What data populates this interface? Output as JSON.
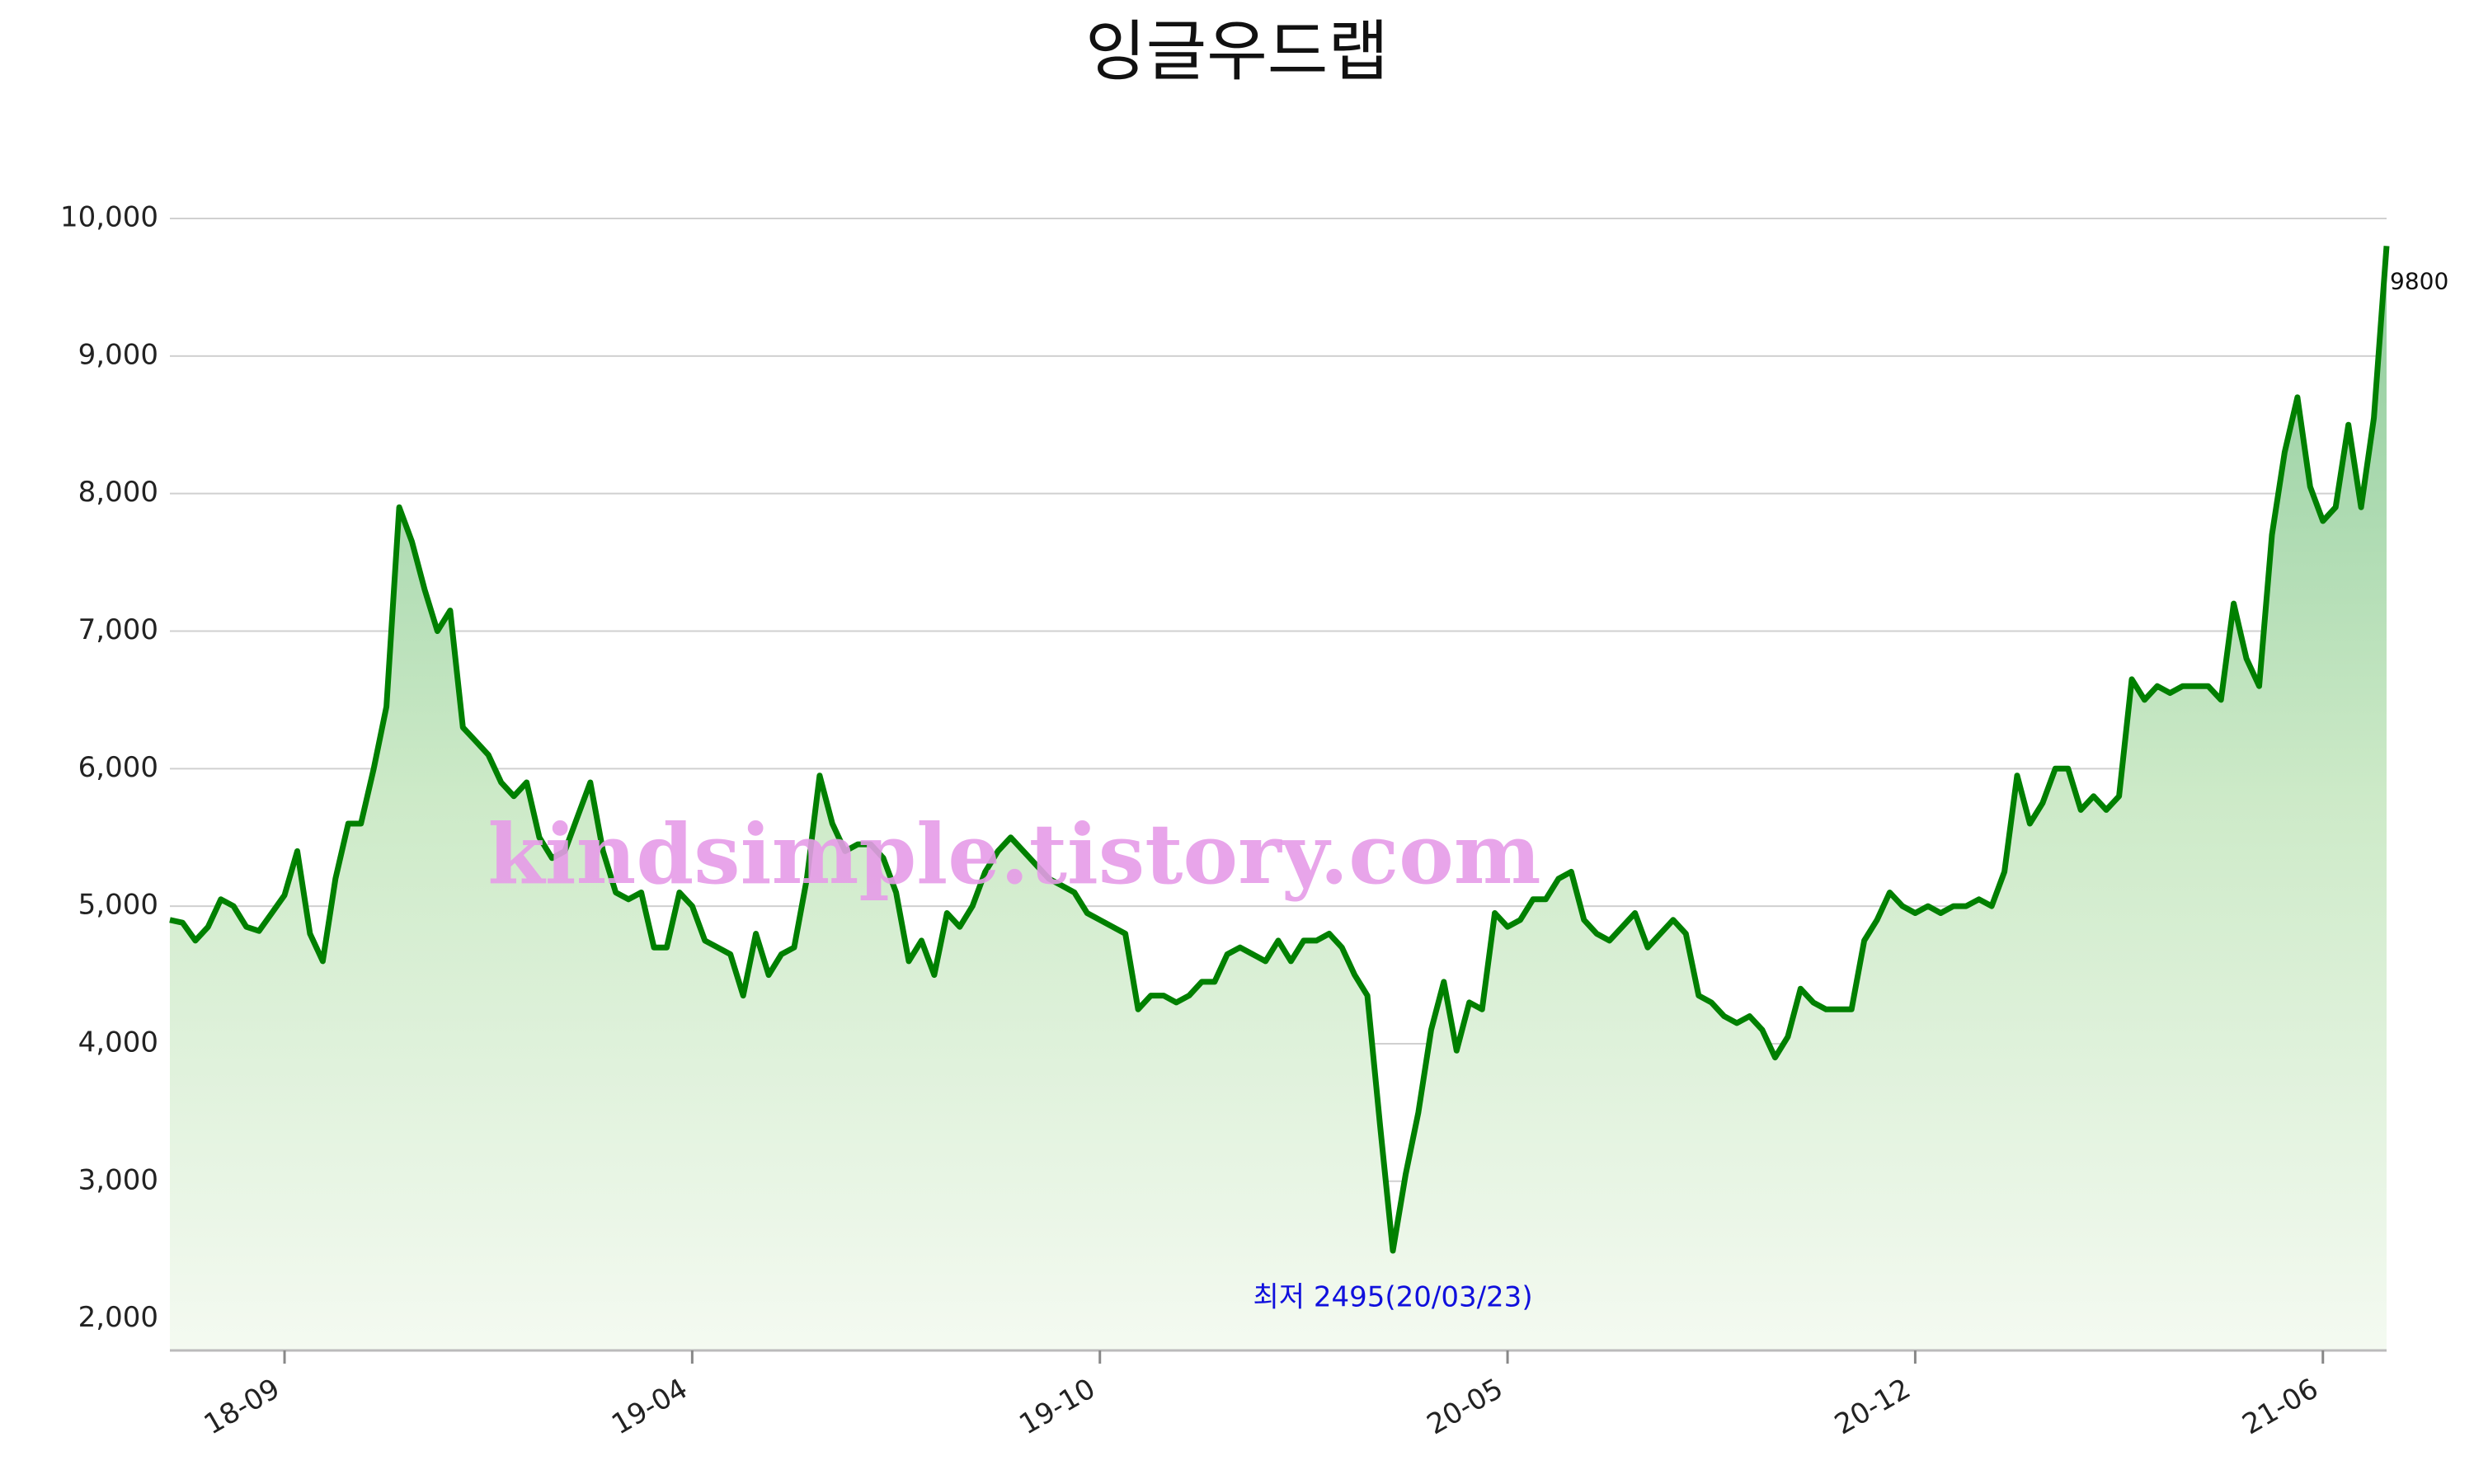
{
  "chart_data": {
    "type": "line",
    "title": "잉글우드랩",
    "watermark": "kindsimple.tistory.com",
    "color": "#008000",
    "grid": true,
    "annotation": "최저 2495(20/03/23)",
    "ylim": [
      1770,
      10000
    ],
    "yticks": [
      {
        "value": 2000,
        "label": "2,000"
      },
      {
        "value": 3000,
        "label": "3,000"
      },
      {
        "value": 4000,
        "label": "4,000"
      },
      {
        "value": 5000,
        "label": "5,000"
      },
      {
        "value": 6000,
        "label": "6,000"
      },
      {
        "value": 7000,
        "label": "7,000"
      },
      {
        "value": 8000,
        "label": "8,000"
      },
      {
        "value": 9000,
        "label": "9,000"
      },
      {
        "value": 10000,
        "label": "10,000"
      }
    ],
    "categories": [
      null,
      null,
      null,
      null,
      null,
      null,
      null,
      null,
      null,
      "18-09",
      null,
      null,
      null,
      null,
      null,
      null,
      null,
      null,
      null,
      null,
      null,
      null,
      null,
      null,
      null,
      null,
      null,
      null,
      null,
      null,
      null,
      null,
      null,
      null,
      null,
      null,
      null,
      null,
      null,
      null,
      null,
      "19-04",
      null,
      null,
      null,
      null,
      null,
      null,
      null,
      null,
      null,
      null,
      null,
      null,
      null,
      null,
      null,
      null,
      null,
      null,
      null,
      null,
      null,
      null,
      null,
      null,
      null,
      null,
      null,
      null,
      null,
      null,
      null,
      "19-10",
      null,
      null,
      null,
      null,
      null,
      null,
      null,
      null,
      null,
      null,
      null,
      null,
      null,
      null,
      null,
      null,
      null,
      null,
      null,
      null,
      null,
      null,
      null,
      null,
      null,
      null,
      null,
      null,
      null,
      null,
      null,
      "20-05",
      null,
      null,
      null,
      null,
      null,
      null,
      null,
      null,
      null,
      null,
      null,
      null,
      null,
      null,
      null,
      null,
      null,
      null,
      null,
      null,
      null,
      null,
      null,
      null,
      null,
      null,
      null,
      null,
      null,
      null,
      null,
      "20-12",
      null,
      null,
      null,
      null,
      null,
      null,
      null,
      null,
      null,
      null,
      null,
      null,
      null,
      null,
      null,
      null,
      null,
      null,
      null,
      null,
      null,
      null,
      null,
      null,
      null,
      null,
      null,
      null,
      null,
      null,
      null,
      "21-06",
      null,
      null,
      null,
      null,
      null
    ],
    "values": [
      4900,
      4880,
      4750,
      4850,
      5050,
      5000,
      4850,
      4820,
      4950,
      5080,
      5400,
      4800,
      4600,
      5200,
      5600,
      5600,
      6000,
      6450,
      7900,
      7650,
      7300,
      7000,
      7150,
      6300,
      6200,
      6100,
      5900,
      5800,
      5900,
      5500,
      5350,
      5400,
      5650,
      5900,
      5400,
      5100,
      5050,
      5100,
      4700,
      4700,
      5100,
      5000,
      4750,
      4700,
      4650,
      4350,
      4800,
      4500,
      4650,
      4700,
      5200,
      5950,
      5600,
      5400,
      5450,
      5450,
      5350,
      5100,
      4600,
      4750,
      4500,
      4950,
      4850,
      5000,
      5250,
      5400,
      5500,
      5400,
      5300,
      5200,
      5150,
      5100,
      4950,
      4900,
      4850,
      4800,
      4250,
      4350,
      4350,
      4300,
      4350,
      4450,
      4450,
      4650,
      4700,
      4650,
      4600,
      4750,
      4600,
      4750,
      4750,
      4800,
      4700,
      4500,
      4350,
      3400,
      2495,
      3050,
      3500,
      4100,
      4450,
      3950,
      4300,
      4250,
      4950,
      4850,
      4900,
      5050,
      5050,
      5200,
      5250,
      4900,
      4800,
      4750,
      4850,
      4950,
      4700,
      4800,
      4900,
      4800,
      4350,
      4300,
      4200,
      4150,
      4200,
      4100,
      3900,
      4050,
      4400,
      4300,
      4250,
      4250,
      4250,
      4750,
      4900,
      5100,
      5000,
      4950,
      5000,
      4950,
      5000,
      5000,
      5050,
      5000,
      5250,
      5950,
      5600,
      5750,
      6000,
      6000,
      5700,
      5800,
      5700,
      5800,
      6650,
      6500,
      6600,
      6550,
      6600,
      6600,
      6600,
      6500,
      7200,
      6800,
      6600,
      7700,
      8300,
      8700,
      8050,
      7800,
      7900,
      8500,
      7900,
      8550,
      9800
    ]
  }
}
